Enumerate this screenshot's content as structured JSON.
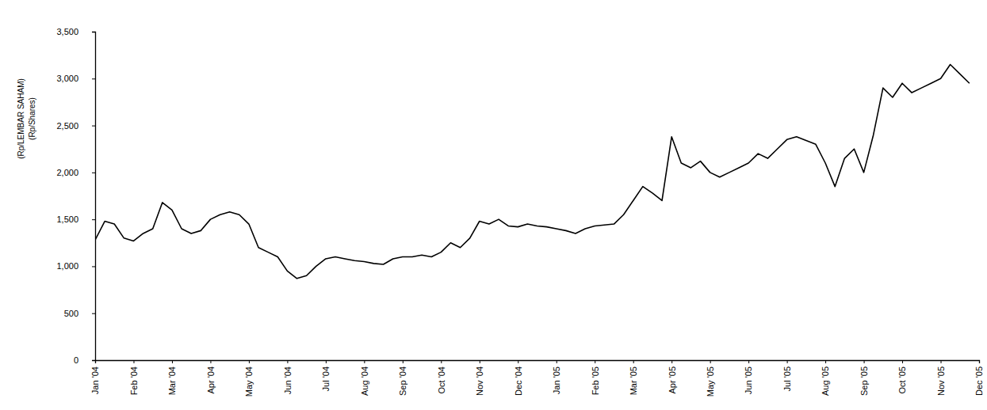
{
  "chart_data": {
    "type": "line",
    "y_label": "(Rp/LEMBAR SAHAM)",
    "y_sublabel": "(Rp/Shares)",
    "color": "#000000",
    "grid": false,
    "categories": [
      "Jan '04",
      null,
      null,
      null,
      "Feb '04",
      null,
      null,
      null,
      "Mar '04",
      null,
      null,
      null,
      "Apr '04",
      null,
      null,
      null,
      "May '04",
      null,
      null,
      null,
      "Jun '04",
      null,
      null,
      null,
      "Jul '04",
      null,
      null,
      null,
      "Aug '04",
      null,
      null,
      null,
      "Sep '04",
      null,
      null,
      null,
      "Oct '04",
      null,
      null,
      null,
      "Nov '04",
      null,
      null,
      null,
      "Dec '04",
      null,
      null,
      null,
      "Jan '05",
      null,
      null,
      null,
      "Feb '05",
      null,
      null,
      null,
      "Mar '05",
      null,
      null,
      null,
      "Apr '05",
      null,
      null,
      null,
      "May '05",
      null,
      null,
      null,
      "Jun '05",
      null,
      null,
      null,
      "Jul '05",
      null,
      null,
      null,
      "Aug '05",
      null,
      null,
      null,
      "Sep '05",
      null,
      null,
      null,
      "Oct '05",
      null,
      null,
      null,
      "Nov '05",
      null,
      null,
      null,
      "Dec '05"
    ],
    "values": [
      1280,
      1480,
      1450,
      1300,
      1270,
      1350,
      1400,
      1680,
      1600,
      1400,
      1350,
      1380,
      1500,
      1550,
      1580,
      1550,
      1450,
      1200,
      1150,
      1100,
      950,
      870,
      900,
      1000,
      1080,
      1100,
      1080,
      1060,
      1050,
      1030,
      1020,
      1080,
      1100,
      1100,
      1120,
      1100,
      1150,
      1250,
      1200,
      1300,
      1480,
      1450,
      1500,
      1430,
      1420,
      1450,
      1430,
      1420,
      1400,
      1380,
      1350,
      1400,
      1430,
      1440,
      1450,
      1550,
      1700,
      1850,
      1780,
      1700,
      2380,
      2100,
      2050,
      2120,
      2000,
      1950,
      2000,
      2050,
      2100,
      2200,
      2150,
      2250,
      2350,
      2380,
      2340,
      2300,
      2100,
      1850,
      2150,
      2250,
      2000,
      2400,
      2900,
      2800,
      2950,
      2850,
      2900,
      2950,
      3000,
      3150,
      3050,
      2950,
      null
    ],
    "ylim": [
      0,
      3500
    ],
    "yticks": [
      0,
      500,
      {
        "value": 1000,
        "label": "1,000"
      },
      {
        "value": 1500,
        "label": "1,500"
      },
      {
        "value": 2000,
        "label": "2,000"
      },
      {
        "value": 2500,
        "label": "2,500"
      },
      {
        "value": 3000,
        "label": "3,000"
      },
      {
        "value": 3500,
        "label": "3,500"
      }
    ]
  }
}
